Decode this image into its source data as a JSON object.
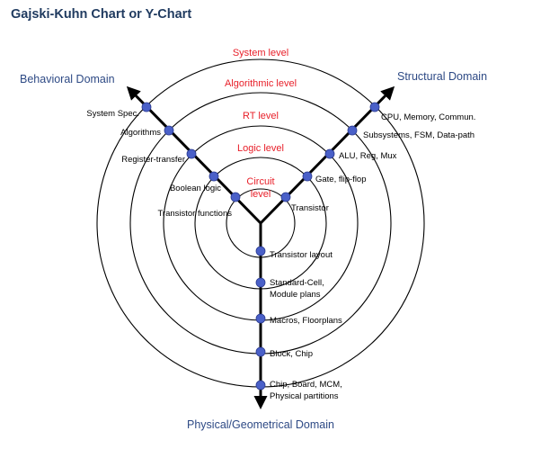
{
  "title": "Gajski-Kuhn Chart or Y-Chart",
  "colors": {
    "level_text": "#e8202a",
    "domain_text": "#2e4a85",
    "node_fill": "#4a60c8",
    "circle_stroke": "#000000"
  },
  "levels": {
    "system": "System level",
    "algorithmic": "Algorithmic level",
    "rt": "RT level",
    "logic": "Logic level",
    "circuit_line1": "Circuit",
    "circuit_line2": "level"
  },
  "domains": {
    "behavioral": "Behavioral Domain",
    "structural": "Structural Domain",
    "physical": "Physical/Geometrical Domain"
  },
  "behavioral_items": [
    "System Spec.",
    "Algorithms",
    "Register-transfer",
    "Boolean logic",
    "Transistor functions"
  ],
  "structural_items": [
    "CPU, Memory, Commun.",
    "Subsystems, FSM, Data-path",
    "ALU, Reg, Mux",
    "Gate, flip-flop",
    "Transistor"
  ],
  "physical_items": [
    "Transistor layout",
    "Standard-Cell,",
    "Module plans",
    "Macros, Floorplans",
    "Block, Chip",
    "Chip, Board, MCM,",
    "Physical partitions"
  ]
}
